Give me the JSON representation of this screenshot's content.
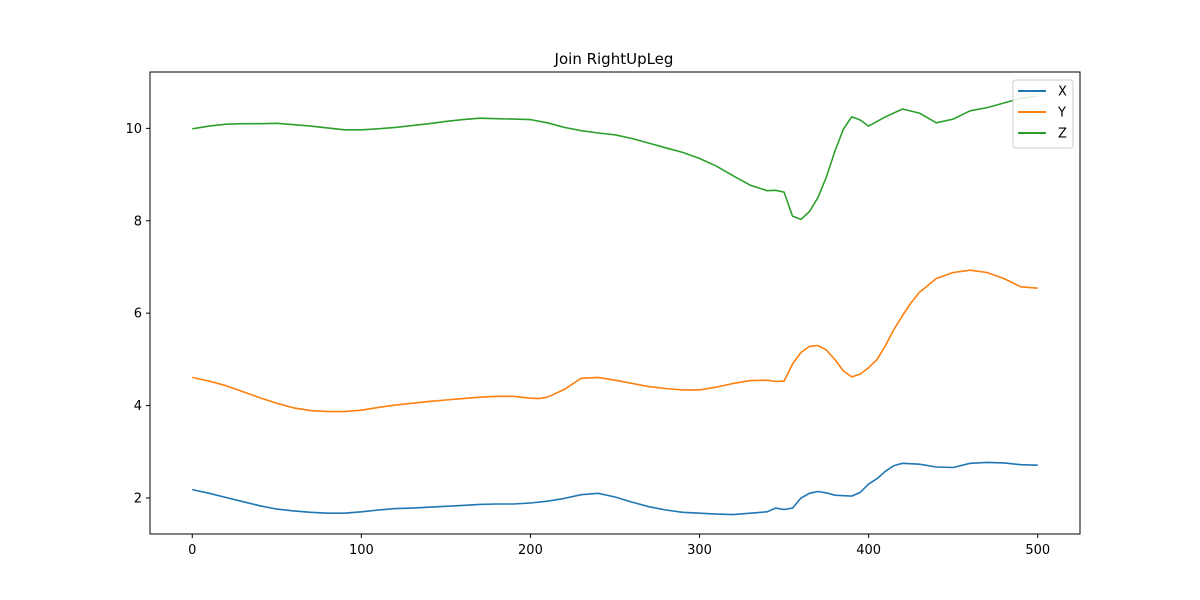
{
  "chart_data": {
    "type": "line",
    "title": "Join RightUpLeg",
    "xlabel": "",
    "ylabel": "",
    "xlim": [
      -25,
      525
    ],
    "ylim": [
      1.22,
      11.22
    ],
    "xticks": [
      0,
      100,
      200,
      300,
      400,
      500
    ],
    "yticks": [
      2,
      4,
      6,
      8,
      10
    ],
    "grid": false,
    "legend_position": "top-right",
    "series": [
      {
        "name": "X",
        "color": "#1f77b4",
        "x": [
          0,
          10,
          20,
          30,
          40,
          50,
          60,
          70,
          80,
          90,
          100,
          110,
          120,
          130,
          140,
          150,
          160,
          170,
          180,
          190,
          200,
          210,
          220,
          230,
          240,
          250,
          260,
          270,
          280,
          290,
          300,
          310,
          320,
          330,
          340,
          345,
          350,
          355,
          360,
          365,
          370,
          375,
          380,
          385,
          390,
          395,
          400,
          405,
          410,
          415,
          420,
          430,
          440,
          450,
          460,
          470,
          480,
          490,
          500
        ],
        "values": [
          2.18,
          2.1,
          2.01,
          1.92,
          1.83,
          1.76,
          1.72,
          1.69,
          1.67,
          1.67,
          1.7,
          1.74,
          1.77,
          1.78,
          1.8,
          1.82,
          1.84,
          1.86,
          1.87,
          1.87,
          1.89,
          1.93,
          1.99,
          2.07,
          2.1,
          2.02,
          1.91,
          1.81,
          1.74,
          1.69,
          1.67,
          1.65,
          1.64,
          1.67,
          1.7,
          1.78,
          1.75,
          1.78,
          2.0,
          2.1,
          2.14,
          2.11,
          2.06,
          2.05,
          2.04,
          2.12,
          2.3,
          2.42,
          2.58,
          2.7,
          2.75,
          2.73,
          2.67,
          2.66,
          2.75,
          2.77,
          2.76,
          2.72,
          2.71
        ]
      },
      {
        "name": "Y",
        "color": "#ff7f0e",
        "x": [
          0,
          10,
          20,
          30,
          40,
          50,
          60,
          70,
          80,
          90,
          100,
          110,
          120,
          130,
          140,
          150,
          160,
          170,
          180,
          190,
          200,
          205,
          210,
          220,
          230,
          240,
          250,
          260,
          270,
          280,
          290,
          300,
          310,
          320,
          330,
          340,
          345,
          350,
          355,
          360,
          365,
          370,
          375,
          380,
          385,
          390,
          395,
          400,
          405,
          410,
          415,
          420,
          425,
          430,
          440,
          450,
          460,
          470,
          480,
          490,
          500
        ],
        "values": [
          4.61,
          4.53,
          4.43,
          4.3,
          4.17,
          4.05,
          3.95,
          3.89,
          3.87,
          3.87,
          3.9,
          3.96,
          4.01,
          4.05,
          4.09,
          4.12,
          4.15,
          4.18,
          4.2,
          4.2,
          4.16,
          4.15,
          4.18,
          4.35,
          4.59,
          4.61,
          4.55,
          4.48,
          4.41,
          4.37,
          4.34,
          4.34,
          4.4,
          4.48,
          4.54,
          4.55,
          4.52,
          4.53,
          4.9,
          5.15,
          5.28,
          5.3,
          5.2,
          5.0,
          4.75,
          4.62,
          4.68,
          4.82,
          5.0,
          5.3,
          5.65,
          5.95,
          6.22,
          6.45,
          6.75,
          6.88,
          6.93,
          6.88,
          6.75,
          6.57,
          6.54
        ]
      },
      {
        "name": "Z",
        "color": "#2ca02c",
        "x": [
          0,
          10,
          20,
          30,
          40,
          50,
          60,
          70,
          80,
          90,
          100,
          110,
          120,
          130,
          140,
          150,
          160,
          170,
          180,
          190,
          200,
          210,
          220,
          230,
          240,
          250,
          260,
          270,
          280,
          290,
          300,
          310,
          320,
          330,
          340,
          345,
          350,
          355,
          360,
          365,
          370,
          375,
          380,
          385,
          390,
          395,
          400,
          410,
          420,
          430,
          440,
          450,
          460,
          470,
          480,
          490,
          500
        ],
        "values": [
          9.99,
          10.05,
          10.09,
          10.1,
          10.1,
          10.11,
          10.08,
          10.05,
          10.01,
          9.97,
          9.97,
          9.99,
          10.02,
          10.06,
          10.1,
          10.15,
          10.19,
          10.22,
          10.21,
          10.2,
          10.19,
          10.12,
          10.02,
          9.95,
          9.9,
          9.86,
          9.78,
          9.68,
          9.58,
          9.48,
          9.35,
          9.18,
          8.97,
          8.77,
          8.65,
          8.66,
          8.62,
          8.1,
          8.03,
          8.2,
          8.5,
          8.95,
          9.5,
          9.98,
          10.25,
          10.18,
          10.05,
          10.25,
          10.42,
          10.33,
          10.12,
          10.2,
          10.38,
          10.45,
          10.55,
          10.65,
          10.7
        ]
      }
    ]
  }
}
